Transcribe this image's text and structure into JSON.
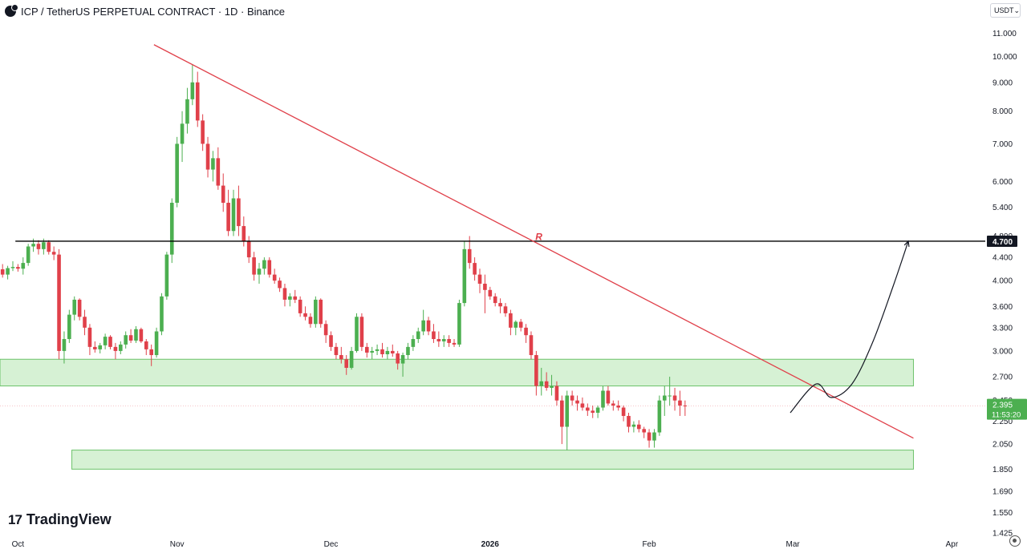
{
  "header": {
    "title": "ICP / TetherUS PERPETUAL CONTRACT · 1D · Binance",
    "currency": "USDT",
    "currency_chevron": "⌄"
  },
  "branding": {
    "logo_mark": "17",
    "logo_text": "TradingView"
  },
  "icons": {
    "symbol": "icp-coin-icon",
    "settings": "gear-icon"
  },
  "colors": {
    "up": "#4caf50",
    "down": "#e0404a",
    "trendline": "#e0404a",
    "resistance": "#000000",
    "zone_fill": "#cfeecd",
    "zone_border": "#6cc26a",
    "last_price_bg": "#4caf50",
    "projection": "#131722"
  },
  "chart_data": {
    "type": "candlestick",
    "scale": "log",
    "ylim": [
      1.425,
      11.5
    ],
    "x_range": [
      "2025-09-28",
      "2026-04-08"
    ],
    "y_ticks": [
      1.425,
      1.55,
      1.69,
      1.85,
      2.05,
      2.25,
      2.45,
      2.7,
      3.0,
      3.3,
      3.6,
      4.0,
      4.4,
      4.8,
      5.4,
      6.0,
      7.0,
      8.0,
      9.0,
      10.0,
      11.0
    ],
    "y_tick_labels": [
      "1.425",
      "1.550",
      "1.690",
      "1.850",
      "2.050",
      "2.250",
      "2.450",
      "2.700",
      "3.000",
      "3.300",
      "3.600",
      "4.000",
      "4.400",
      "4.800",
      "5.400",
      "6.000",
      "7.000",
      "8.000",
      "9.000",
      "10.000",
      "11.000"
    ],
    "x_ticks": [
      {
        "date": "2025-10-01",
        "label": "Oct",
        "bold": false
      },
      {
        "date": "2025-11-01",
        "label": "Nov",
        "bold": false
      },
      {
        "date": "2025-12-01",
        "label": "Dec",
        "bold": false
      },
      {
        "date": "2026-01-01",
        "label": "2026",
        "bold": true
      },
      {
        "date": "2026-02-01",
        "label": "Feb",
        "bold": false
      },
      {
        "date": "2026-03-01",
        "label": "Mar",
        "bold": false
      },
      {
        "date": "2026-04-01",
        "label": "Apr",
        "bold": false
      }
    ],
    "start_date": "2025-09-28",
    "candles": [
      [
        4.19,
        4.28,
        4.05,
        4.1
      ],
      [
        4.1,
        4.25,
        4.02,
        4.21
      ],
      [
        4.21,
        4.33,
        4.16,
        4.23
      ],
      [
        4.23,
        4.28,
        4.15,
        4.2
      ],
      [
        4.2,
        4.4,
        4.1,
        4.3
      ],
      [
        4.3,
        4.65,
        4.25,
        4.6
      ],
      [
        4.6,
        4.75,
        4.5,
        4.65
      ],
      [
        4.65,
        4.72,
        4.45,
        4.55
      ],
      [
        4.55,
        4.75,
        4.45,
        4.68
      ],
      [
        4.68,
        4.72,
        4.45,
        4.5
      ],
      [
        4.5,
        4.6,
        4.35,
        4.45
      ],
      [
        4.45,
        4.55,
        2.9,
        3.0
      ],
      [
        3.0,
        3.25,
        2.85,
        3.15
      ],
      [
        3.15,
        3.55,
        3.1,
        3.48
      ],
      [
        3.48,
        3.75,
        3.4,
        3.7
      ],
      [
        3.7,
        3.72,
        3.4,
        3.45
      ],
      [
        3.45,
        3.55,
        3.2,
        3.3
      ],
      [
        3.3,
        3.35,
        2.95,
        3.05
      ],
      [
        3.05,
        3.12,
        2.98,
        3.02
      ],
      [
        3.02,
        3.1,
        2.97,
        3.07
      ],
      [
        3.07,
        3.22,
        3.02,
        3.18
      ],
      [
        3.18,
        3.2,
        3.02,
        3.05
      ],
      [
        3.05,
        3.1,
        2.9,
        3.0
      ],
      [
        3.0,
        3.12,
        2.96,
        3.08
      ],
      [
        3.08,
        3.25,
        3.03,
        3.2
      ],
      [
        3.2,
        3.28,
        3.1,
        3.13
      ],
      [
        3.13,
        3.32,
        3.1,
        3.28
      ],
      [
        3.28,
        3.3,
        3.1,
        3.12
      ],
      [
        3.12,
        3.15,
        2.95,
        3.02
      ],
      [
        3.02,
        3.08,
        2.82,
        2.95
      ],
      [
        2.95,
        3.3,
        2.92,
        3.25
      ],
      [
        3.25,
        3.8,
        3.2,
        3.75
      ],
      [
        3.75,
        4.5,
        3.7,
        4.45
      ],
      [
        4.45,
        5.6,
        4.3,
        5.5
      ],
      [
        5.5,
        7.2,
        5.4,
        7.0
      ],
      [
        7.0,
        8.0,
        6.5,
        7.6
      ],
      [
        7.6,
        8.8,
        7.3,
        8.4
      ],
      [
        8.4,
        9.7,
        8.2,
        9.0
      ],
      [
        9.0,
        9.4,
        7.5,
        7.7
      ],
      [
        7.7,
        7.9,
        6.8,
        7.0
      ],
      [
        7.0,
        7.2,
        6.1,
        6.3
      ],
      [
        6.3,
        6.8,
        6.0,
        6.6
      ],
      [
        6.6,
        6.9,
        5.8,
        5.9
      ],
      [
        5.9,
        6.2,
        5.3,
        5.5
      ],
      [
        5.5,
        5.8,
        4.8,
        4.9
      ],
      [
        4.9,
        5.8,
        4.8,
        5.6
      ],
      [
        5.6,
        5.9,
        4.8,
        5.0
      ],
      [
        5.0,
        5.2,
        4.6,
        4.7
      ],
      [
        4.7,
        4.8,
        4.3,
        4.4
      ],
      [
        4.4,
        4.5,
        4.0,
        4.1
      ],
      [
        4.1,
        4.3,
        3.95,
        4.2
      ],
      [
        4.2,
        4.4,
        4.1,
        4.35
      ],
      [
        4.35,
        4.4,
        4.05,
        4.1
      ],
      [
        4.1,
        4.2,
        3.95,
        4.0
      ],
      [
        4.0,
        4.05,
        3.82,
        3.88
      ],
      [
        3.88,
        3.95,
        3.6,
        3.7
      ],
      [
        3.7,
        3.8,
        3.6,
        3.75
      ],
      [
        3.75,
        3.85,
        3.65,
        3.7
      ],
      [
        3.7,
        3.75,
        3.45,
        3.5
      ],
      [
        3.5,
        3.6,
        3.4,
        3.45
      ],
      [
        3.45,
        3.5,
        3.3,
        3.35
      ],
      [
        3.35,
        3.75,
        3.3,
        3.7
      ],
      [
        3.7,
        3.72,
        3.3,
        3.35
      ],
      [
        3.35,
        3.4,
        3.1,
        3.2
      ],
      [
        3.2,
        3.25,
        3.0,
        3.05
      ],
      [
        3.05,
        3.1,
        2.9,
        2.95
      ],
      [
        2.95,
        3.05,
        2.85,
        2.9
      ],
      [
        2.9,
        2.95,
        2.72,
        2.8
      ],
      [
        2.8,
        3.05,
        2.78,
        3.0
      ],
      [
        3.0,
        3.5,
        2.98,
        3.45
      ],
      [
        3.45,
        3.5,
        3.0,
        3.05
      ],
      [
        3.05,
        3.1,
        2.92,
        2.98
      ],
      [
        2.98,
        3.05,
        2.9,
        3.0
      ],
      [
        3.0,
        3.08,
        2.95,
        3.02
      ],
      [
        3.02,
        3.1,
        2.92,
        2.96
      ],
      [
        2.96,
        3.05,
        2.9,
        3.0
      ],
      [
        3.0,
        3.08,
        2.93,
        2.97
      ],
      [
        2.97,
        3.0,
        2.78,
        2.85
      ],
      [
        2.85,
        2.98,
        2.7,
        2.95
      ],
      [
        2.95,
        3.1,
        2.9,
        3.05
      ],
      [
        3.05,
        3.2,
        3.0,
        3.15
      ],
      [
        3.15,
        3.3,
        3.1,
        3.25
      ],
      [
        3.25,
        3.55,
        3.2,
        3.4
      ],
      [
        3.4,
        3.45,
        3.2,
        3.25
      ],
      [
        3.25,
        3.35,
        3.1,
        3.15
      ],
      [
        3.15,
        3.25,
        3.05,
        3.12
      ],
      [
        3.12,
        3.2,
        3.05,
        3.15
      ],
      [
        3.15,
        3.2,
        3.05,
        3.1
      ],
      [
        3.1,
        3.15,
        3.05,
        3.08
      ],
      [
        3.08,
        3.7,
        3.05,
        3.65
      ],
      [
        3.65,
        4.7,
        3.6,
        4.55
      ],
      [
        4.55,
        4.8,
        4.2,
        4.3
      ],
      [
        4.3,
        4.4,
        4.0,
        4.1
      ],
      [
        4.1,
        4.2,
        3.8,
        3.95
      ],
      [
        3.95,
        4.1,
        3.5,
        3.85
      ],
      [
        3.85,
        3.9,
        3.7,
        3.75
      ],
      [
        3.75,
        3.8,
        3.6,
        3.65
      ],
      [
        3.65,
        3.72,
        3.5,
        3.6
      ],
      [
        3.6,
        3.65,
        3.45,
        3.5
      ],
      [
        3.5,
        3.55,
        3.2,
        3.3
      ],
      [
        3.3,
        3.4,
        3.2,
        3.38
      ],
      [
        3.38,
        3.42,
        3.25,
        3.3
      ],
      [
        3.3,
        3.35,
        3.1,
        3.2
      ],
      [
        3.2,
        3.25,
        2.9,
        2.95
      ],
      [
        2.95,
        3.0,
        2.5,
        2.6
      ],
      [
        2.6,
        2.8,
        2.5,
        2.65
      ],
      [
        2.65,
        2.75,
        2.55,
        2.58
      ],
      [
        2.58,
        2.72,
        2.5,
        2.6
      ],
      [
        2.6,
        2.65,
        2.4,
        2.45
      ],
      [
        2.45,
        2.5,
        2.05,
        2.2
      ],
      [
        2.2,
        2.55,
        2.0,
        2.5
      ],
      [
        2.5,
        2.55,
        2.4,
        2.45
      ],
      [
        2.45,
        2.5,
        2.35,
        2.42
      ],
      [
        2.42,
        2.48,
        2.35,
        2.38
      ],
      [
        2.38,
        2.42,
        2.3,
        2.35
      ],
      [
        2.35,
        2.4,
        2.28,
        2.33
      ],
      [
        2.33,
        2.4,
        2.28,
        2.38
      ],
      [
        2.38,
        2.6,
        2.35,
        2.55
      ],
      [
        2.55,
        2.6,
        2.4,
        2.42
      ],
      [
        2.42,
        2.45,
        2.35,
        2.4
      ],
      [
        2.4,
        2.45,
        2.35,
        2.38
      ],
      [
        2.38,
        2.4,
        2.25,
        2.3
      ],
      [
        2.3,
        2.33,
        2.15,
        2.2
      ],
      [
        2.2,
        2.25,
        2.15,
        2.22
      ],
      [
        2.22,
        2.26,
        2.15,
        2.18
      ],
      [
        2.18,
        2.2,
        2.1,
        2.15
      ],
      [
        2.15,
        2.18,
        2.02,
        2.08
      ],
      [
        2.08,
        2.18,
        2.02,
        2.15
      ],
      [
        2.15,
        2.5,
        2.12,
        2.45
      ],
      [
        2.45,
        2.6,
        2.3,
        2.5
      ],
      [
        2.5,
        2.7,
        2.4,
        2.5
      ],
      [
        2.5,
        2.58,
        2.35,
        2.45
      ],
      [
        2.45,
        2.55,
        2.3,
        2.4
      ],
      [
        2.4,
        2.45,
        2.3,
        2.395
      ]
    ],
    "resistance": {
      "price": 4.7,
      "label": "4.700",
      "from_date": "2025-10-01"
    },
    "last_price": {
      "price": 2.395,
      "label": "2.395",
      "countdown": "11:53:20"
    },
    "zones": [
      {
        "name": "upper-demand-zone",
        "from": "2025-09-28",
        "to": "2026-03-25",
        "low": 2.6,
        "high": 2.9
      },
      {
        "name": "lower-demand-zone",
        "from": "2025-10-12",
        "to": "2026-03-25",
        "low": 1.85,
        "high": 2.0
      }
    ],
    "trendline": {
      "from": {
        "date": "2025-10-28",
        "price": 10.5
      },
      "to": {
        "date": "2026-03-25",
        "price": 2.1
      }
    },
    "resistance_marker": {
      "label": "R",
      "date": "2026-01-11",
      "price": 4.8
    },
    "projection_path": [
      {
        "date": "2026-03-01",
        "price": 2.33
      },
      {
        "date": "2026-03-06",
        "price": 2.62
      },
      {
        "date": "2026-03-09",
        "price": 2.48
      },
      {
        "date": "2026-03-13",
        "price": 2.62
      },
      {
        "date": "2026-03-17",
        "price": 3.1
      },
      {
        "date": "2026-03-21",
        "price": 3.9
      },
      {
        "date": "2026-03-24",
        "price": 4.7
      }
    ],
    "grid": false,
    "legend": "none"
  }
}
